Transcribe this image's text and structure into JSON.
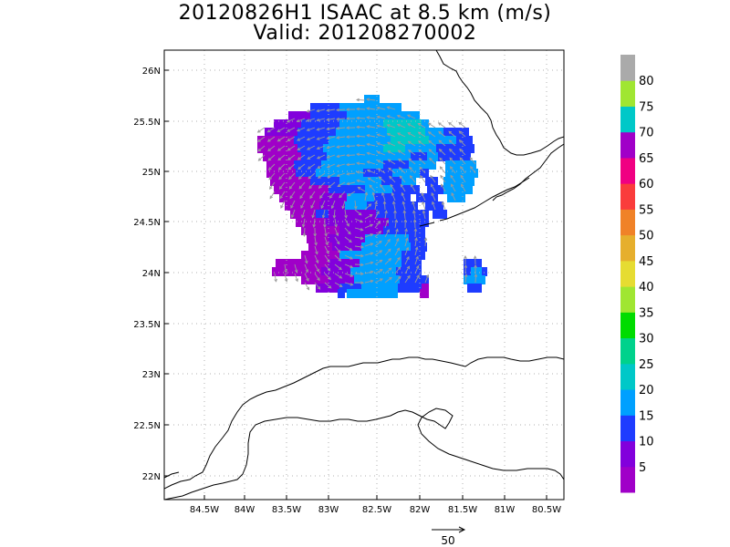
{
  "title": {
    "line1": "20120826H1 ISAAC at 8.5 km (m/s)",
    "line2": "Valid: 201208270002"
  },
  "map": {
    "lon_ticks": [
      "84.5W",
      "84W",
      "83.5W",
      "83W",
      "82.5W",
      "82W",
      "81.5W",
      "81W",
      "80.5W"
    ],
    "lat_ticks": [
      "26N",
      "25.5N",
      "25N",
      "24.5N",
      "24N",
      "23.5N",
      "23N",
      "22.5N",
      "22N"
    ],
    "lon_range": [
      -85.0,
      -80.5
    ],
    "lat_range": [
      21.8,
      26.3
    ]
  },
  "colorbar": {
    "labels": [
      "5",
      "10",
      "15",
      "20",
      "25",
      "30",
      "35",
      "40",
      "45",
      "50",
      "55",
      "60",
      "65",
      "70",
      "75",
      "80"
    ],
    "colors": [
      "#a000c8",
      "#8200dc",
      "#1e3cff",
      "#00a0ff",
      "#00c8c8",
      "#00d28c",
      "#00dc00",
      "#a0e632",
      "#e6dc32",
      "#e6af2d",
      "#f08228",
      "#fa3c3c",
      "#f00082",
      "#a000c8",
      "#00c8c8",
      "#a0e632",
      "#aaaaaa"
    ]
  },
  "reference_vector": {
    "label": "50"
  }
}
